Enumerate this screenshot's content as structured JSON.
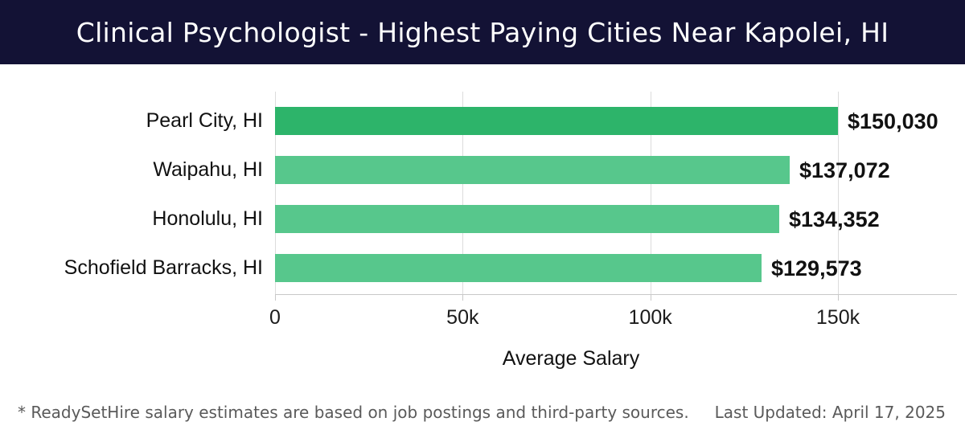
{
  "header": {
    "title": "Clinical Psychologist - Highest Paying Cities Near Kapolei, HI",
    "bg_color": "#131235",
    "text_color": "#ffffff"
  },
  "chart_data": {
    "type": "bar",
    "orientation": "horizontal",
    "title": "Clinical Psychologist - Highest Paying Cities Near Kapolei, HI",
    "categories": [
      "Pearl City, HI",
      "Waipahu, HI",
      "Honolulu, HI",
      "Schofield Barracks, HI"
    ],
    "values": [
      150030,
      137072,
      134352,
      129573
    ],
    "value_labels": [
      "$150,030",
      "$137,072",
      "$134,352",
      "$129,573"
    ],
    "xlabel": "Average Salary",
    "ylabel": "",
    "xlim": [
      0,
      181700
    ],
    "xticks": [
      {
        "value": 0,
        "label": "0"
      },
      {
        "value": 50000,
        "label": "50k"
      },
      {
        "value": 100000,
        "label": "100k"
      },
      {
        "value": 150000,
        "label": "150k"
      }
    ],
    "grid": true,
    "legend": false,
    "highlight_bar_color": "#2db46a",
    "bar_color": "#57c78c",
    "bar_colors": [
      "#2db46a",
      "#57c78c",
      "#57c78c",
      "#57c78c"
    ],
    "gridline_color": "#dcdcdc",
    "text_color": "#111111"
  },
  "footer": {
    "note": "* ReadySetHire salary estimates are based on job postings and third-party sources.",
    "last_updated": "Last Updated: April 17, 2025"
  }
}
